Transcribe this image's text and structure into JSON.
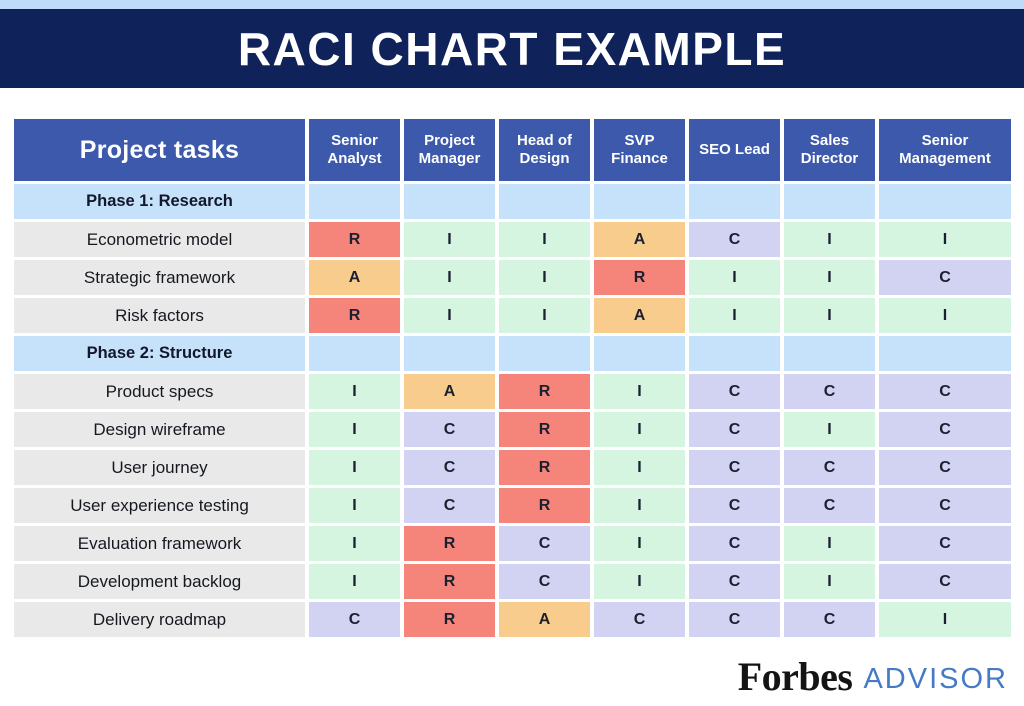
{
  "page": {
    "title": "RACI CHART EXAMPLE"
  },
  "chart_data": {
    "type": "table",
    "title": "RACI CHART EXAMPLE",
    "task_column_header": "Project tasks",
    "role_headers": [
      "Senior Analyst",
      "Project Manager",
      "Head of Design",
      "SVP Finance",
      "SEO Lead",
      "Sales Director",
      "Senior Management"
    ],
    "legend_colors": {
      "R": "#F5847B",
      "A": "#F8CC8D",
      "C": "#D2D3F3",
      "I": "#D5F5E1"
    },
    "rows": [
      {
        "type": "phase",
        "label": "Phase 1: Research",
        "cells": [
          "",
          "",
          "",
          "",
          "",
          "",
          ""
        ]
      },
      {
        "type": "task",
        "label": "Econometric model",
        "cells": [
          "R",
          "I",
          "I",
          "A",
          "C",
          "I",
          "I"
        ]
      },
      {
        "type": "task",
        "label": "Strategic framework",
        "cells": [
          "A",
          "I",
          "I",
          "R",
          "I",
          "I",
          "C"
        ]
      },
      {
        "type": "task",
        "label": "Risk factors",
        "cells": [
          "R",
          "I",
          "I",
          "A",
          "I",
          "I",
          "I"
        ]
      },
      {
        "type": "phase",
        "label": "Phase 2: Structure",
        "cells": [
          "",
          "",
          "",
          "",
          "",
          "",
          ""
        ]
      },
      {
        "type": "task",
        "label": "Product specs",
        "cells": [
          "I",
          "A",
          "R",
          "I",
          "C",
          "C",
          "C"
        ]
      },
      {
        "type": "task",
        "label": "Design wireframe",
        "cells": [
          "I",
          "C",
          "R",
          "I",
          "C",
          "I",
          "C"
        ]
      },
      {
        "type": "task",
        "label": "User journey",
        "cells": [
          "I",
          "C",
          "R",
          "I",
          "C",
          "C",
          "C"
        ]
      },
      {
        "type": "task",
        "label": "User experience testing",
        "cells": [
          "I",
          "C",
          "R",
          "I",
          "C",
          "C",
          "C"
        ]
      },
      {
        "type": "task",
        "label": "Evaluation framework",
        "cells": [
          "I",
          "R",
          "C",
          "I",
          "C",
          "I",
          "C"
        ]
      },
      {
        "type": "task",
        "label": "Development backlog",
        "cells": [
          "I",
          "R",
          "C",
          "I",
          "C",
          "I",
          "C"
        ]
      },
      {
        "type": "task",
        "label": "Delivery roadmap",
        "cells": [
          "C",
          "R",
          "A",
          "C",
          "C",
          "C",
          "I"
        ]
      }
    ]
  },
  "footer": {
    "brand": "Forbes",
    "brand_suffix": "ADVISOR"
  },
  "colors": {
    "navy": "#10225A",
    "strip_blue": "#BEDCF7",
    "header_blue": "#3C59AB",
    "phase_blue": "#C6E1FA",
    "task_gray": "#E9E9E9",
    "advisor_blue": "#4679C6",
    "raci_r": "#F5847B",
    "raci_a": "#F8CC8D",
    "raci_c": "#D2D3F3",
    "raci_i": "#D5F5E1"
  }
}
